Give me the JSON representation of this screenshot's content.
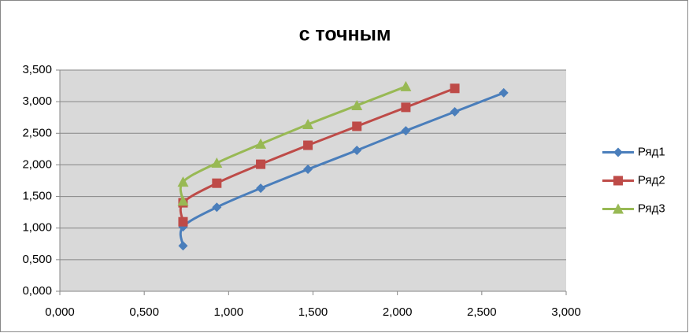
{
  "chart_data": {
    "type": "scatter",
    "title": "с точным",
    "smooth": true,
    "grid": true,
    "legend": "right",
    "xlim": [
      0,
      3
    ],
    "ylim": [
      0,
      3.5
    ],
    "xticks": [
      {
        "value": 0,
        "label": "0,000"
      },
      {
        "value": 0.5,
        "label": "0,500"
      },
      {
        "value": 1,
        "label": "1,000"
      },
      {
        "value": 1.5,
        "label": "1,500"
      },
      {
        "value": 2,
        "label": "2,000"
      },
      {
        "value": 2.5,
        "label": "2,500"
      },
      {
        "value": 3,
        "label": "3,000"
      }
    ],
    "yticks": [
      {
        "value": 0,
        "label": "0,000"
      },
      {
        "value": 0.5,
        "label": "0,500"
      },
      {
        "value": 1,
        "label": "1,000"
      },
      {
        "value": 1.5,
        "label": "1,500"
      },
      {
        "value": 2,
        "label": "2,000"
      },
      {
        "value": 2.5,
        "label": "2,500"
      },
      {
        "value": 3,
        "label": "3,000"
      },
      {
        "value": 3.5,
        "label": "3,500"
      }
    ],
    "series": [
      {
        "name": "Ряд1",
        "color": "#4a7ebb",
        "marker": "diamond",
        "x": [
          0.73,
          0.73,
          0.93,
          1.19,
          1.47,
          1.76,
          2.05,
          2.34,
          2.63
        ],
        "values": [
          0.72,
          1.02,
          1.33,
          1.63,
          1.93,
          2.23,
          2.54,
          2.84,
          3.14
        ]
      },
      {
        "name": "Ряд2",
        "color": "#be4b48",
        "marker": "square",
        "x": [
          0.73,
          0.73,
          0.93,
          1.19,
          1.47,
          1.76,
          2.05,
          2.34
        ],
        "values": [
          1.1,
          1.4,
          1.71,
          2.01,
          2.31,
          2.61,
          2.91,
          3.21
        ]
      },
      {
        "name": "Ряд3",
        "color": "#98b954",
        "marker": "triangle",
        "x": [
          0.73,
          0.73,
          0.93,
          1.19,
          1.47,
          1.76,
          2.05
        ],
        "values": [
          1.43,
          1.73,
          2.03,
          2.33,
          2.64,
          2.94,
          3.24
        ]
      }
    ]
  }
}
